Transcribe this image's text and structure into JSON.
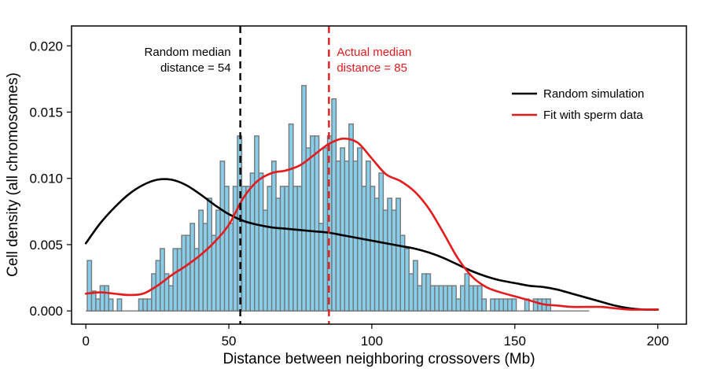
{
  "chart_data": {
    "type": "bar",
    "xlabel": "Distance between neighboring crossovers (Mb)",
    "ylabel": "Cell density (all chromosomes)",
    "xlim": [
      -5,
      210
    ],
    "ylim": [
      -0.001,
      0.0215
    ],
    "xticks": [
      0,
      50,
      100,
      150,
      200
    ],
    "yticks": [
      0.0,
      0.005,
      0.01,
      0.015,
      0.02
    ],
    "xtick_labels": [
      "0",
      "50",
      "100",
      "150",
      "200"
    ],
    "ytick_labels": [
      "0.000",
      "0.005",
      "0.010",
      "0.015",
      "0.020"
    ],
    "grid": false,
    "legend_position": "top-right",
    "histogram": {
      "bin_width": 1.5,
      "x_start": 0.5,
      "color": "#87ceeb",
      "edge_color": "#777777",
      "values": [
        0.0038,
        0.0015,
        0.0009,
        0.0019,
        0.0019,
        0.0009,
        0.0,
        0.0009,
        0.0,
        0.0,
        0.0,
        0.0,
        0.0009,
        0.0009,
        0.0009,
        0.0028,
        0.0038,
        0.0047,
        0.0028,
        0.0019,
        0.0047,
        0.0047,
        0.0057,
        0.0057,
        0.0066,
        0.0047,
        0.0076,
        0.0066,
        0.0085,
        0.0057,
        0.0076,
        0.0113,
        0.0094,
        0.0066,
        0.0094,
        0.0132,
        0.0094,
        0.0094,
        0.0104,
        0.0132,
        0.0104,
        0.0076,
        0.0094,
        0.0113,
        0.0085,
        0.0094,
        0.0094,
        0.0141,
        0.0094,
        0.0094,
        0.017,
        0.0123,
        0.0132,
        0.0132,
        0.0066,
        0.0123,
        0.0132,
        0.016,
        0.0113,
        0.0123,
        0.0113,
        0.0141,
        0.0113,
        0.0123,
        0.0094,
        0.0113,
        0.0094,
        0.0085,
        0.0104,
        0.0076,
        0.0085,
        0.0076,
        0.0085,
        0.0057,
        0.0047,
        0.0028,
        0.0038,
        0.0019,
        0.0028,
        0.0028,
        0.0019,
        0.0019,
        0.0019,
        0.0019,
        0.0019,
        0.0019,
        0.0009,
        0.0019,
        0.0028,
        0.0019,
        0.0019,
        0.0019,
        0.0009,
        0.0,
        0.0009,
        0.0009,
        0.0009,
        0.0009,
        0.0009,
        0.0009,
        0.0,
        0.0,
        0.0009,
        0.0,
        0.0009,
        0.0009,
        0.0009,
        0.0009,
        0.0,
        0.0,
        0.0
      ]
    },
    "series": [
      {
        "name": "Random simulation",
        "color": "#000000",
        "x": [
          0,
          5,
          10,
          15,
          20,
          25,
          30,
          35,
          40,
          45,
          50,
          55,
          60,
          65,
          70,
          75,
          80,
          85,
          90,
          95,
          100,
          105,
          110,
          115,
          120,
          125,
          130,
          135,
          140,
          145,
          150,
          155,
          160,
          165,
          170,
          175,
          180,
          185,
          190,
          195,
          200
        ],
        "y": [
          0.0051,
          0.0066,
          0.0078,
          0.0088,
          0.0095,
          0.0099,
          0.0099,
          0.0095,
          0.0088,
          0.008,
          0.0073,
          0.0068,
          0.0065,
          0.0063,
          0.0062,
          0.0061,
          0.006,
          0.0059,
          0.0057,
          0.0055,
          0.0053,
          0.0051,
          0.0049,
          0.0047,
          0.0044,
          0.004,
          0.0035,
          0.003,
          0.0026,
          0.0023,
          0.0021,
          0.0019,
          0.0018,
          0.0016,
          0.0013,
          0.001,
          0.0007,
          0.0004,
          0.0002,
          0.0001,
          0.0001
        ]
      },
      {
        "name": "Fit with sperm data",
        "color": "#e41a1c",
        "x": [
          0,
          5,
          10,
          15,
          20,
          25,
          30,
          35,
          40,
          45,
          50,
          55,
          60,
          65,
          70,
          75,
          80,
          85,
          90,
          95,
          100,
          105,
          110,
          115,
          120,
          125,
          130,
          135,
          140,
          145,
          150,
          155,
          160,
          165,
          170,
          175,
          180,
          185,
          190,
          195,
          200
        ],
        "y": [
          0.0013,
          0.0014,
          0.0013,
          0.0012,
          0.0013,
          0.0019,
          0.0027,
          0.0034,
          0.0042,
          0.0052,
          0.0065,
          0.0085,
          0.0098,
          0.0104,
          0.0106,
          0.011,
          0.0118,
          0.0126,
          0.013,
          0.0127,
          0.0115,
          0.0103,
          0.0098,
          0.009,
          0.0077,
          0.0059,
          0.004,
          0.0026,
          0.0018,
          0.0014,
          0.0011,
          0.0008,
          0.0005,
          0.0004,
          0.0003,
          0.0003,
          0.0003,
          0.0002,
          0.0001,
          0.0001,
          0.0001
        ]
      }
    ],
    "vlines": [
      {
        "x": 54,
        "color": "#000000",
        "label_lines": [
          "Random median",
          "distance = 54"
        ],
        "align": "right"
      },
      {
        "x": 85,
        "color": "#e41a1c",
        "label_lines": [
          "Actual median",
          "distance = 85"
        ],
        "align": "left"
      }
    ]
  }
}
